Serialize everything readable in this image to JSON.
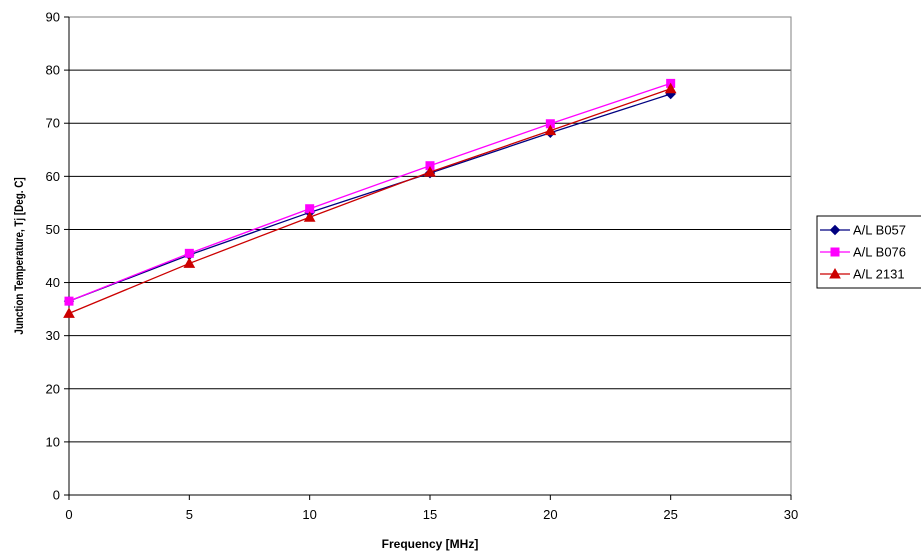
{
  "chart_data": {
    "type": "line",
    "title": "",
    "xlabel": "Frequency [MHz]",
    "ylabel": "Junction Temperature, Tj [Deg. C]",
    "xlim": [
      0,
      30
    ],
    "ylim": [
      0,
      90
    ],
    "x_ticks": [
      0,
      5,
      10,
      15,
      20,
      25,
      30
    ],
    "y_ticks": [
      0,
      10,
      20,
      30,
      40,
      50,
      60,
      70,
      80,
      90
    ],
    "grid": "horizontal",
    "legend_position": "right",
    "series": [
      {
        "name": "A/L B057",
        "color": "#000080",
        "marker": "diamond",
        "x": [
          0,
          5,
          10,
          15,
          20,
          25
        ],
        "y": [
          36.5,
          45.2,
          53.2,
          60.6,
          68.2,
          75.5
        ]
      },
      {
        "name": "A/L B076",
        "color": "#ff00ff",
        "marker": "square",
        "x": [
          0,
          5,
          10,
          15,
          20,
          25
        ],
        "y": [
          36.5,
          45.5,
          53.9,
          62.0,
          69.9,
          77.5
        ]
      },
      {
        "name": "A/L 2131",
        "color": "#cc0000",
        "marker": "triangle",
        "x": [
          0,
          5,
          10,
          15,
          20,
          25
        ],
        "y": [
          34.2,
          43.6,
          52.3,
          60.8,
          68.6,
          76.5
        ]
      }
    ]
  }
}
